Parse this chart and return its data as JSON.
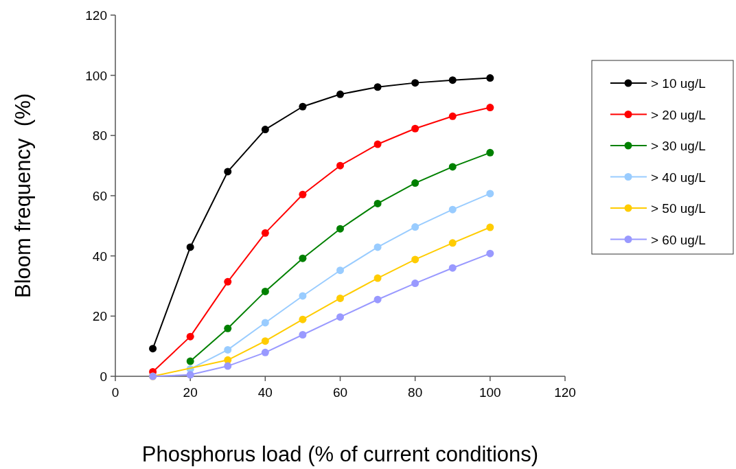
{
  "chart_data": {
    "type": "line",
    "xlabel": "Phosphorus load (% of current conditions)",
    "ylabel": "Bloom frequency  (%)",
    "x": [
      10,
      20,
      30,
      40,
      50,
      60,
      70,
      80,
      90,
      100
    ],
    "xlim": [
      0,
      120
    ],
    "xticks": [
      0,
      20,
      40,
      60,
      80,
      100,
      120
    ],
    "ylim": [
      0,
      120
    ],
    "yticks": [
      0,
      20,
      40,
      60,
      80,
      100,
      120
    ],
    "grid": false,
    "legend": "right",
    "marker": "circle",
    "line_style": "solid",
    "series": [
      {
        "name": "> 10 ug/L",
        "color": "#000000",
        "values": [
          9.2,
          42.9,
          68.0,
          82.0,
          89.6,
          93.7,
          96.1,
          97.5,
          98.4,
          99.1
        ]
      },
      {
        "name": "> 20 ug/L",
        "color": "#ff0000",
        "values": [
          1.5,
          13.2,
          31.4,
          47.6,
          60.4,
          70.0,
          77.1,
          82.3,
          86.4,
          89.3
        ]
      },
      {
        "name": "> 30 ug/L",
        "color": "#008000",
        "values": [
          null,
          5.0,
          15.9,
          28.2,
          39.2,
          49.0,
          57.4,
          64.2,
          69.6,
          74.3
        ]
      },
      {
        "name": "> 40 ug/L",
        "color": "#99ccff",
        "values": [
          null,
          2.4,
          8.8,
          17.8,
          26.7,
          35.2,
          42.9,
          49.6,
          55.4,
          60.7
        ]
      },
      {
        "name": "> 50 ug/L",
        "color": "#ffcc00",
        "values": [
          0,
          null,
          5.4,
          11.7,
          18.9,
          25.9,
          32.6,
          38.8,
          44.3,
          49.5
        ]
      },
      {
        "name": "> 60 ug/L",
        "color": "#9999ff",
        "values": [
          0,
          0.5,
          3.4,
          7.9,
          13.8,
          19.7,
          25.5,
          30.9,
          36.0,
          40.8
        ]
      }
    ]
  }
}
